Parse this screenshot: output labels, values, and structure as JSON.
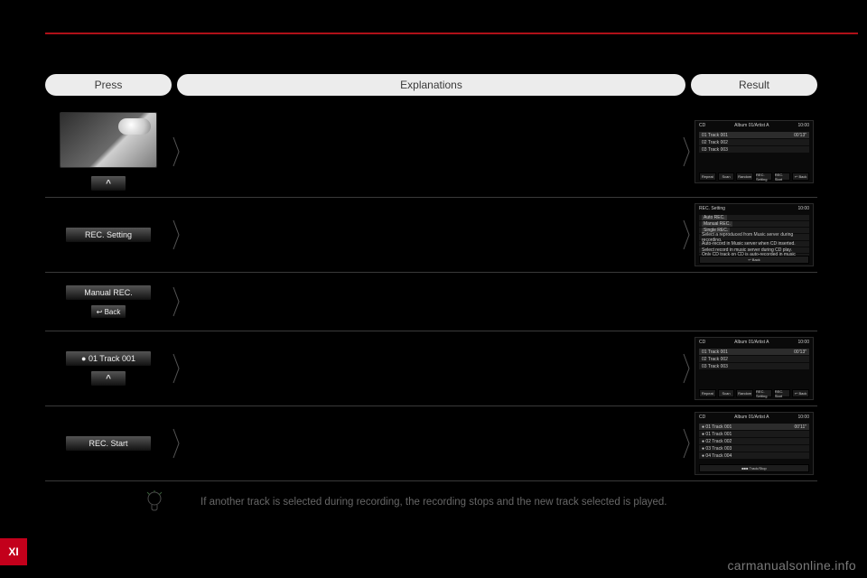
{
  "colors": {
    "accent": "#c3001b",
    "divider": "#b01018",
    "pill_bg": "#ececec",
    "pill_fg": "#3a3a3a",
    "page_bg": "#000000"
  },
  "header": {
    "press": "Press",
    "explanations": "Explanations",
    "result": "Result"
  },
  "rows": [
    {
      "press": {
        "photo": true,
        "buttons": [
          {
            "label": "^",
            "variant": "caret"
          }
        ]
      },
      "result": {
        "title_left": "CD",
        "title_mid": "Album 01/Artist A",
        "time": "10:00",
        "now": "01 Track 001",
        "dur": "00'13\"",
        "count": "1/16",
        "lines": [
          "02  Track 002",
          "03  Track 003"
        ],
        "foot": [
          "Repeat",
          "Scan",
          "Random",
          "REC. Setting",
          "REC. Start",
          "↩ Back"
        ]
      }
    },
    {
      "press": {
        "buttons": [
          {
            "label": "REC. Setting"
          }
        ]
      },
      "result": {
        "title_left": "REC. Setting",
        "time": "10:00",
        "lines": [
          "Select a reproduced from Music server during recording.",
          "Auto-record in Music server when CD inserted.",
          "Select record in music server during CD play.",
          "Only CD track on CD is auto-recorded in music server."
        ],
        "leftBtns": [
          "Auto REC.",
          "Manual REC.",
          "Single REC."
        ],
        "foot": [
          "↩ Back"
        ]
      }
    },
    {
      "press": {
        "buttons": [
          {
            "label": "Manual REC."
          },
          {
            "label": "↩ Back",
            "variant": "sm"
          }
        ]
      }
    },
    {
      "press": {
        "buttons": [
          {
            "label": "●  01   Track 001"
          },
          {
            "label": "^",
            "variant": "caret"
          }
        ]
      },
      "result": {
        "title_left": "CD",
        "title_mid": "Album 01/Artist A",
        "time": "10:00",
        "now": "01 Track 001",
        "dur": "00'13\"",
        "count": "1/16",
        "lines": [
          "02  Track 002",
          "03  Track 003"
        ],
        "foot": [
          "Repeat",
          "Scan",
          "Random",
          "REC. Setting",
          "REC. Start",
          "↩ Back"
        ]
      }
    },
    {
      "press": {
        "buttons": [
          {
            "label": "REC. Start"
          }
        ]
      },
      "result": {
        "title_left": "CD",
        "title_mid": "Album 01/Artist A",
        "time": "10:00",
        "now": "01 Track 001",
        "dur": "00'11\"",
        "count": "1/16",
        "rec": true,
        "lines": [
          "● 01  Track 001",
          "● 02  Track 002",
          "● 03  Track 003",
          "● 04  Track 004"
        ],
        "foot": [
          "■■■ Track/Stop"
        ]
      }
    }
  ],
  "tip": "If another track is selected during recording, the recording stops and the new track selected is played.",
  "tab": "XI",
  "watermark": "carmanualsonline.info"
}
